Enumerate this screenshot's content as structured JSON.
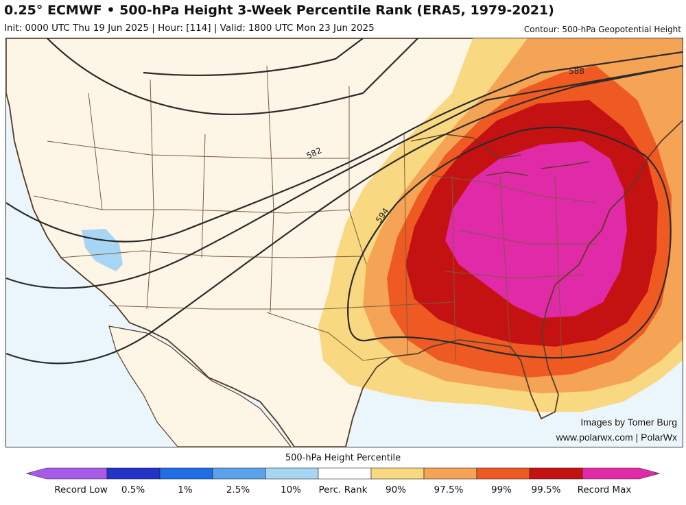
{
  "header": {
    "title": "0.25° ECMWF • 500-hPa Height 3-Week Percentile Rank (ERA5, 1979-2021)",
    "subtitle": "Init: 0000 UTC Thu 19 Jun 2025 | Hour: [114] | Valid: 1800 UTC Mon 23 Jun 2025",
    "contour_note": "Contour: 500-hPa Geopotential Height"
  },
  "map": {
    "region": "Contiguous United States",
    "contour_labels": [
      "588",
      "582",
      "594"
    ],
    "credit_line1": "Images by Tomer Burg",
    "credit_line2": "www.polarwx.com | PolarWx"
  },
  "colorbar": {
    "title": "500-hPa Height Percentile",
    "labels": [
      "Record Low",
      "0.5%",
      "1%",
      "2.5%",
      "10%",
      "Perc. Rank",
      "90%",
      "97.5%",
      "99%",
      "99.5%",
      "Record Max"
    ],
    "colors": [
      "#a55be8",
      "#2233c8",
      "#1f6ee8",
      "#5aa3ec",
      "#a6d6f4",
      "#ffffff",
      "#f8d880",
      "#f5a355",
      "#ef5a22",
      "#c41212",
      "#e02aa8"
    ]
  }
}
